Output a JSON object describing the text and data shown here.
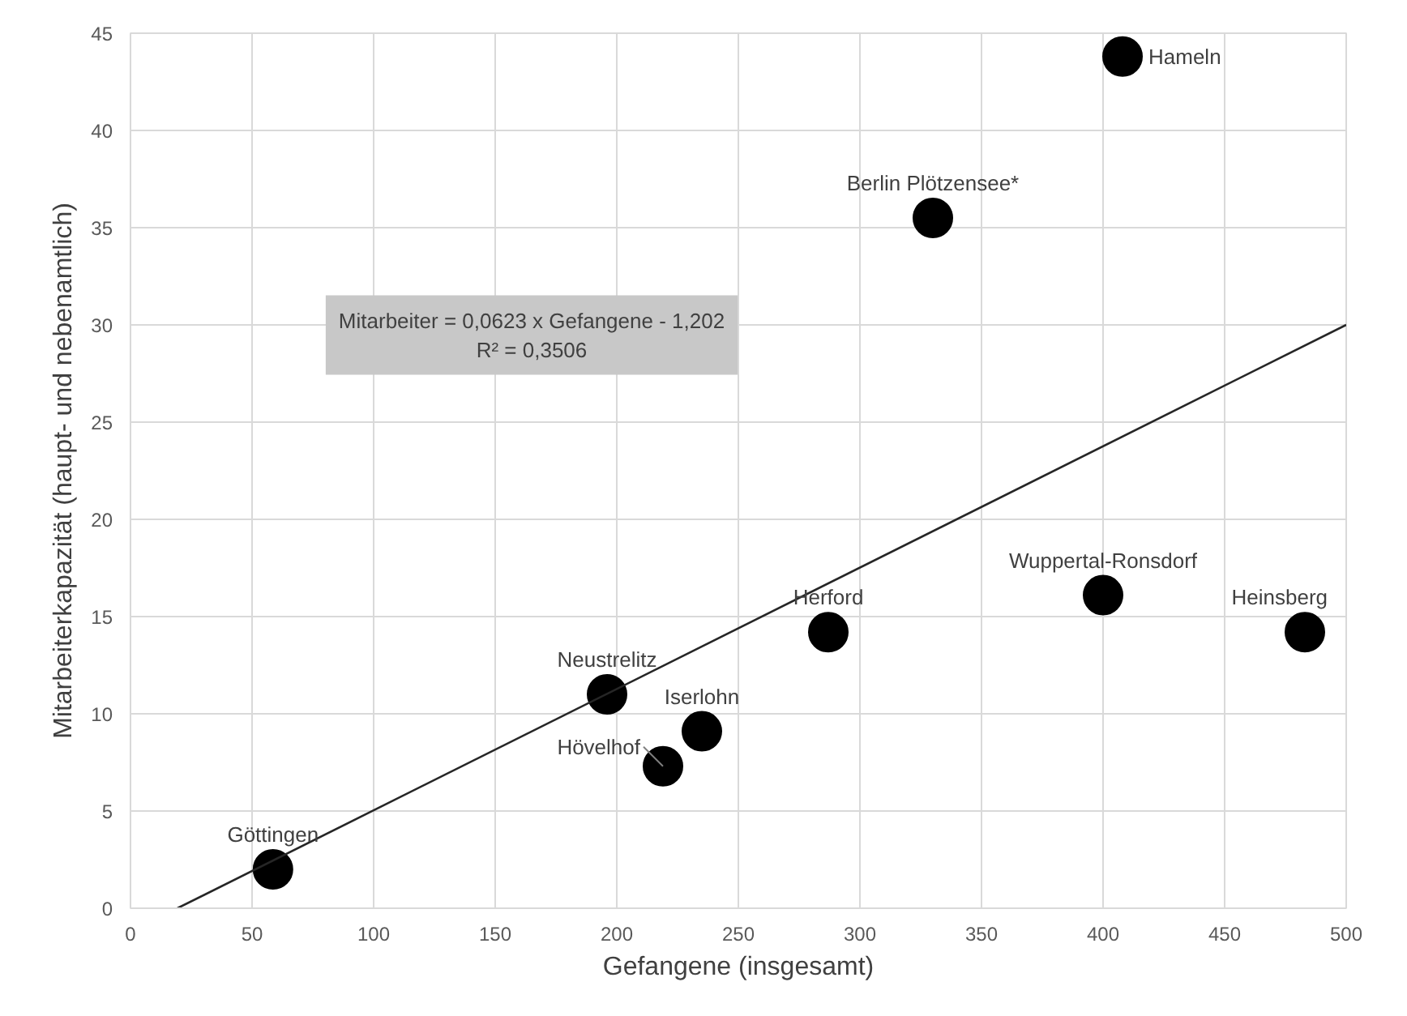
{
  "chart_data": {
    "type": "scatter",
    "xlabel": "Gefangene (insgesamt)",
    "ylabel": "Mitarbeiterkapazität (haupt- und nebenamtlich)",
    "xlim": [
      0,
      500
    ],
    "xticks": [
      0,
      50,
      100,
      150,
      200,
      250,
      300,
      350,
      400,
      450,
      500
    ],
    "ylim": [
      0,
      45
    ],
    "yticks": [
      0,
      5,
      10,
      15,
      20,
      25,
      30,
      35,
      40,
      45
    ],
    "grid": true,
    "series": [
      {
        "marker": "circle",
        "color": "#000000",
        "x": [
          58.6,
          196,
          219,
          235,
          287,
          330,
          400,
          408,
          483
        ],
        "values": [
          2.0,
          11.0,
          7.3,
          9.1,
          14.2,
          35.5,
          16.1,
          43.8,
          14.2
        ]
      },
      {
        "type": "line",
        "color": "#262626",
        "x": [
          19.3,
          500
        ],
        "values": [
          0,
          30
        ]
      }
    ],
    "annotations": [
      {
        "text": "Göttingen",
        "x": 58.6,
        "y": 2.0
      },
      {
        "text": "Neustrelitz",
        "x": 196,
        "y": 11.0
      },
      {
        "text": "Hövelhof",
        "x": 219,
        "y": 7.3
      },
      {
        "text": "Iserlohn",
        "x": 235,
        "y": 9.1
      },
      {
        "text": "Herford",
        "x": 287,
        "y": 14.2
      },
      {
        "text": "Berlin Plötzensee*",
        "x": 330,
        "y": 35.5
      },
      {
        "text": "Wuppertal-Ronsdorf",
        "x": 400,
        "y": 16.1
      },
      {
        "text": "Hameln",
        "x": 408,
        "y": 43.8
      },
      {
        "text": "Heinsberg",
        "x": 483,
        "y": 14.2
      },
      "Mitarbeiter = 0,0623 x Gefangene - 1,202\nR² = 0,3506"
    ]
  }
}
